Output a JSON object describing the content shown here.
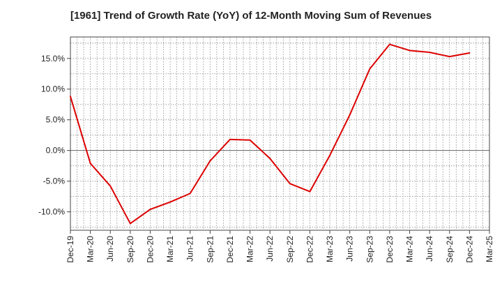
{
  "chart_data": {
    "type": "line",
    "title": "[1961]  Trend of Growth Rate (YoY) of 12-Month Moving Sum of Revenues",
    "xlabel": "",
    "ylabel": "",
    "x_ticks": [
      "Dec-19",
      "Mar-20",
      "Jun-20",
      "Sep-20",
      "Dec-20",
      "Mar-21",
      "Jun-21",
      "Sep-21",
      "Dec-21",
      "Mar-22",
      "Jun-22",
      "Sep-22",
      "Dec-22",
      "Mar-23",
      "Jun-23",
      "Sep-23",
      "Dec-23",
      "Mar-24",
      "Jun-24",
      "Sep-24",
      "Dec-24",
      "Mar-25"
    ],
    "y_ticks": [
      {
        "value": 15,
        "label": "15.0%"
      },
      {
        "value": 10,
        "label": "10.0%"
      },
      {
        "value": 5,
        "label": "5.0%"
      },
      {
        "value": 0,
        "label": "0.0%"
      },
      {
        "value": -5,
        "label": "-5.0%"
      },
      {
        "value": -10,
        "label": "-10.0%"
      }
    ],
    "ylim": [
      -13,
      18.5
    ],
    "grid": true,
    "zero_line": true,
    "series": [
      {
        "color": "#dd0000",
        "x": [
          "Dec-19",
          "Mar-20",
          "Jun-20",
          "Sep-20",
          "Dec-20",
          "Mar-21",
          "Jun-21",
          "Sep-21",
          "Dec-21",
          "Mar-22",
          "Jun-22",
          "Sep-22",
          "Dec-22",
          "Mar-23",
          "Jun-23",
          "Sep-23",
          "Dec-23",
          "Mar-24",
          "Jun-24",
          "Sep-24",
          "Dec-24"
        ],
        "values": [
          8.8,
          -2.1,
          -5.8,
          -11.9,
          -9.6,
          -8.4,
          -7.0,
          -1.7,
          1.8,
          1.7,
          -1.3,
          -5.4,
          -6.7,
          -0.8,
          5.8,
          13.3,
          17.3,
          16.3,
          16.0,
          15.3,
          15.9
        ]
      }
    ]
  }
}
